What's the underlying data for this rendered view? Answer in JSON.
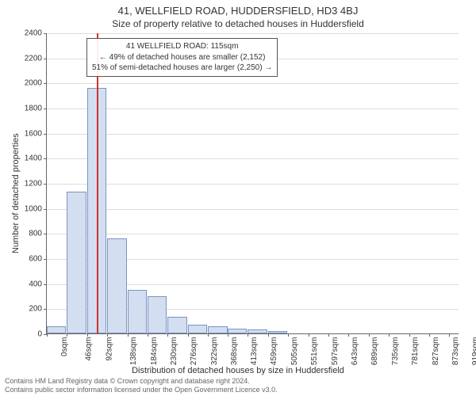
{
  "titles": {
    "main": "41, WELLFIELD ROAD, HUDDERSFIELD, HD3 4BJ",
    "sub": "Size of property relative to detached houses in Huddersfield"
  },
  "axes": {
    "x_label": "Distribution of detached houses by size in Huddersfield",
    "y_label": "Number of detached properties",
    "y_max": 2400,
    "y_ticks": [
      0,
      200,
      400,
      600,
      800,
      1000,
      1200,
      1400,
      1600,
      1800,
      2000,
      2200,
      2400
    ],
    "x_max_sqm": 942,
    "x_ticks": [
      {
        "v": 0,
        "label": "0sqm"
      },
      {
        "v": 46,
        "label": "46sqm"
      },
      {
        "v": 92,
        "label": "92sqm"
      },
      {
        "v": 138,
        "label": "138sqm"
      },
      {
        "v": 184,
        "label": "184sqm"
      },
      {
        "v": 230,
        "label": "230sqm"
      },
      {
        "v": 276,
        "label": "276sqm"
      },
      {
        "v": 322,
        "label": "322sqm"
      },
      {
        "v": 368,
        "label": "368sqm"
      },
      {
        "v": 413,
        "label": "413sqm"
      },
      {
        "v": 459,
        "label": "459sqm"
      },
      {
        "v": 505,
        "label": "505sqm"
      },
      {
        "v": 551,
        "label": "551sqm"
      },
      {
        "v": 597,
        "label": "597sqm"
      },
      {
        "v": 643,
        "label": "643sqm"
      },
      {
        "v": 689,
        "label": "689sqm"
      },
      {
        "v": 735,
        "label": "735sqm"
      },
      {
        "v": 781,
        "label": "781sqm"
      },
      {
        "v": 827,
        "label": "827sqm"
      },
      {
        "v": 873,
        "label": "873sqm"
      },
      {
        "v": 919,
        "label": "919sqm"
      }
    ]
  },
  "chart": {
    "type": "histogram",
    "bin_width_sqm": 46,
    "bar_fill": "#d3def0",
    "bar_stroke": "#7a94c4",
    "grid_color": "#dddddd",
    "bars": [
      {
        "x": 0,
        "count": 60
      },
      {
        "x": 46,
        "count": 1130
      },
      {
        "x": 92,
        "count": 1960
      },
      {
        "x": 138,
        "count": 760
      },
      {
        "x": 184,
        "count": 350
      },
      {
        "x": 230,
        "count": 300
      },
      {
        "x": 276,
        "count": 130
      },
      {
        "x": 322,
        "count": 70
      },
      {
        "x": 368,
        "count": 55
      },
      {
        "x": 413,
        "count": 40
      },
      {
        "x": 459,
        "count": 30
      },
      {
        "x": 505,
        "count": 20
      },
      {
        "x": 551,
        "count": 0
      },
      {
        "x": 597,
        "count": 0
      },
      {
        "x": 643,
        "count": 0
      },
      {
        "x": 689,
        "count": 0
      },
      {
        "x": 735,
        "count": 0
      },
      {
        "x": 781,
        "count": 0
      },
      {
        "x": 827,
        "count": 0
      },
      {
        "x": 873,
        "count": 0
      },
      {
        "x": 919,
        "count": 0
      }
    ]
  },
  "marker": {
    "sqm": 115,
    "color": "#cc3333"
  },
  "annotation": {
    "line1": "41 WELLFIELD ROAD: 115sqm",
    "line2": "← 49% of detached houses are smaller (2,152)",
    "line3": "51% of semi-detached houses are larger (2,250) →"
  },
  "footer": {
    "line1": "Contains HM Land Registry data © Crown copyright and database right 2024.",
    "line2": "Contains public sector information licensed under the Open Government Licence v3.0."
  }
}
